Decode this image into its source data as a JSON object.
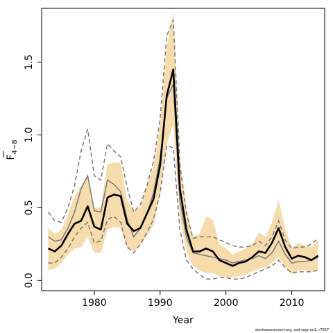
{
  "chart_data": {
    "type": "line",
    "xlabel": "Year",
    "ylabel": "F4-8",
    "ylabel_main": "F",
    "ylabel_sub": "4−8",
    "xlim": [
      1972,
      2015
    ],
    "ylim": [
      -0.07,
      1.87
    ],
    "x_ticks": [
      1980,
      1990,
      2000,
      2010
    ],
    "y_ticks": [
      0.0,
      0.5,
      1.0,
      1.5
    ],
    "x_tick_labels": [
      "1980",
      "1990",
      "2000",
      "2010"
    ],
    "y_tick_labels": [
      "0.0",
      "0.5",
      "1.0",
      "1.5"
    ],
    "grid": false,
    "years": [
      1973,
      1974,
      1975,
      1976,
      1977,
      1978,
      1979,
      1980,
      1981,
      1982,
      1983,
      1984,
      1985,
      1986,
      1987,
      1988,
      1989,
      1990,
      1991,
      1992,
      1993,
      1994,
      1995,
      1996,
      1997,
      1998,
      1999,
      2000,
      2001,
      2002,
      2003,
      2004,
      2005,
      2006,
      2007,
      2008,
      2009,
      2010,
      2011,
      2012,
      2013,
      2014
    ],
    "series": [
      {
        "role": "estimate",
        "values": [
          0.22,
          0.2,
          0.24,
          0.32,
          0.39,
          0.41,
          0.51,
          0.37,
          0.35,
          0.57,
          0.59,
          0.58,
          0.39,
          0.34,
          0.36,
          0.46,
          0.56,
          0.79,
          1.27,
          1.45,
          0.63,
          0.35,
          0.2,
          0.2,
          0.22,
          0.2,
          0.14,
          0.12,
          0.1,
          0.12,
          0.13,
          0.16,
          0.2,
          0.19,
          0.26,
          0.36,
          0.23,
          0.15,
          0.17,
          0.16,
          0.14,
          0.17
        ],
        "color": "#000000"
      },
      {
        "role": "confidence_band_lower",
        "values": [
          0.07,
          0.08,
          0.12,
          0.18,
          0.22,
          0.23,
          0.3,
          0.19,
          0.19,
          0.35,
          0.37,
          0.36,
          0.22,
          0.2,
          0.24,
          0.31,
          0.38,
          0.6,
          0.94,
          1.07,
          0.43,
          0.2,
          0.1,
          0.07,
          0.05,
          0.05,
          0.03,
          0.02,
          0.02,
          0.03,
          0.04,
          0.06,
          0.08,
          0.09,
          0.12,
          0.16,
          0.09,
          0.04,
          0.07,
          0.07,
          0.06,
          0.07
        ],
        "color": "#f5dcaa"
      },
      {
        "role": "confidence_band_upper",
        "values": [
          0.36,
          0.32,
          0.35,
          0.45,
          0.58,
          0.65,
          0.72,
          0.5,
          0.5,
          0.8,
          0.81,
          0.81,
          0.55,
          0.48,
          0.5,
          0.65,
          0.78,
          1.08,
          1.6,
          1.85,
          0.82,
          0.5,
          0.3,
          0.32,
          0.44,
          0.42,
          0.25,
          0.22,
          0.18,
          0.2,
          0.22,
          0.25,
          0.33,
          0.3,
          0.4,
          0.55,
          0.36,
          0.22,
          0.26,
          0.24,
          0.23,
          0.28
        ],
        "color": "#f5dcaa"
      },
      {
        "role": "previous_estimate",
        "values": [
          0.3,
          0.27,
          0.28,
          0.36,
          0.47,
          0.63,
          0.72,
          0.48,
          0.47,
          0.69,
          0.66,
          0.61,
          0.42,
          0.3,
          0.36,
          0.46,
          0.6,
          0.84,
          1.25,
          1.35,
          0.55,
          0.3,
          0.19,
          0.18,
          0.17,
          0.16,
          0.15,
          0.14,
          0.12,
          0.13,
          0.14,
          0.15,
          0.17,
          0.15,
          0.19,
          0.27,
          0.18,
          0.12,
          0.13,
          0.13,
          0.14,
          0.16
        ],
        "color": "#777777"
      },
      {
        "role": "previous_ci_lower",
        "values": [
          0.12,
          0.12,
          0.16,
          0.22,
          0.3,
          0.36,
          0.4,
          0.26,
          0.27,
          0.42,
          0.44,
          0.4,
          0.23,
          0.19,
          0.25,
          0.33,
          0.42,
          0.6,
          0.93,
          0.91,
          0.35,
          0.14,
          0.08,
          0.04,
          0.01,
          0.01,
          0.02,
          0.02,
          0.01,
          0.01,
          0.02,
          0.04,
          0.06,
          0.08,
          0.1,
          0.14,
          0.09,
          0.05,
          0.06,
          0.06,
          0.06,
          0.07
        ],
        "color": "#777777"
      },
      {
        "role": "previous_ci_upper",
        "values": [
          0.47,
          0.41,
          0.4,
          0.5,
          0.65,
          0.89,
          1.04,
          0.72,
          0.69,
          0.94,
          0.89,
          0.85,
          0.64,
          0.47,
          0.52,
          0.65,
          0.82,
          1.11,
          1.68,
          1.79,
          0.8,
          0.46,
          0.29,
          0.3,
          0.3,
          0.3,
          0.28,
          0.26,
          0.24,
          0.23,
          0.23,
          0.24,
          0.27,
          0.24,
          0.3,
          0.41,
          0.28,
          0.22,
          0.23,
          0.23,
          0.25,
          0.29
        ],
        "color": "#777777"
      }
    ]
  },
  "footer": {
    "credit": "stockassessment.org, cod-segr-an1, r7667"
  }
}
